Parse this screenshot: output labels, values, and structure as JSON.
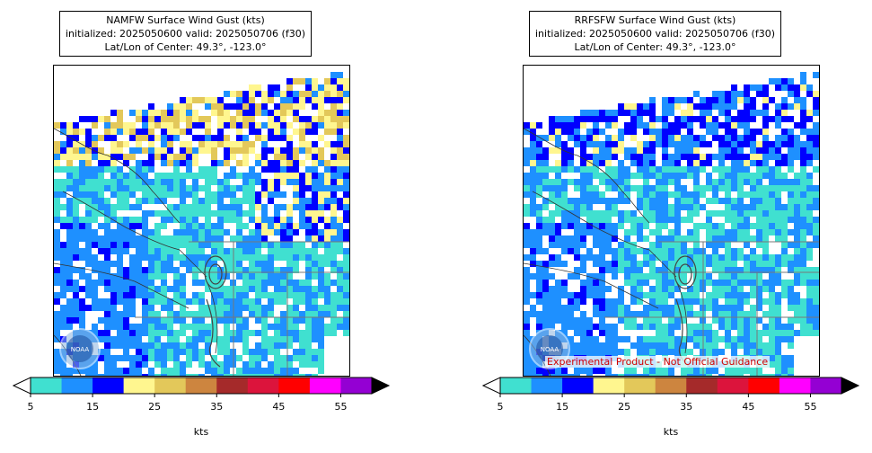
{
  "panels": [
    {
      "title_line1": "NAMFW Surface Wind Gust (kts)",
      "title_line2": "initialized: 2025050600 valid: 2025050706 (f30)",
      "title_line3": "Lat/Lon of Center: 49.3°, -123.0°",
      "logo_text": "NOAA"
    },
    {
      "title_line1": "RRFSFW Surface Wind Gust (kts)",
      "title_line2": "initialized: 2025050600 valid: 2025050706 (f30)",
      "title_line3": "Lat/Lon of Center: 49.3°, -123.0°",
      "logo_text": "NOAA",
      "disclaimer": "Experimental Product - Not Official Guidance"
    }
  ],
  "chart_data": [
    {
      "type": "heatmap",
      "title": "NAMFW Surface Wind Gust (kts)",
      "colorbar": {
        "label": "kts",
        "boundaries": [
          5,
          10,
          15,
          20,
          25,
          30,
          35,
          40,
          45,
          50,
          55,
          60
        ],
        "tick_values": [
          5,
          15,
          25,
          35,
          45,
          55
        ],
        "tick_labels": [
          "5",
          "15",
          "25",
          "35",
          "45",
          "55"
        ],
        "colors": [
          "#40e0d0",
          "#1e90ff",
          "#0000ff",
          "#fff68f",
          "#e3c85a",
          "#cd853f",
          "#a52a2a",
          "#dc143c",
          "#ff0000",
          "#ff00ff",
          "#9400d3"
        ],
        "under_color": "#ffffff",
        "over_color": "#000000"
      }
    },
    {
      "type": "heatmap",
      "title": "RRFSFW Surface Wind Gust (kts)",
      "colorbar": {
        "label": "kts",
        "boundaries": [
          5,
          10,
          15,
          20,
          25,
          30,
          35,
          40,
          45,
          50,
          55,
          60
        ],
        "tick_values": [
          5,
          15,
          25,
          35,
          45,
          55
        ],
        "tick_labels": [
          "5",
          "15",
          "25",
          "35",
          "45",
          "55"
        ],
        "colors": [
          "#40e0d0",
          "#1e90ff",
          "#0000ff",
          "#fff68f",
          "#e3c85a",
          "#cd853f",
          "#a52a2a",
          "#dc143c",
          "#ff0000",
          "#ff00ff",
          "#9400d3"
        ],
        "under_color": "#ffffff",
        "over_color": "#000000"
      }
    }
  ]
}
